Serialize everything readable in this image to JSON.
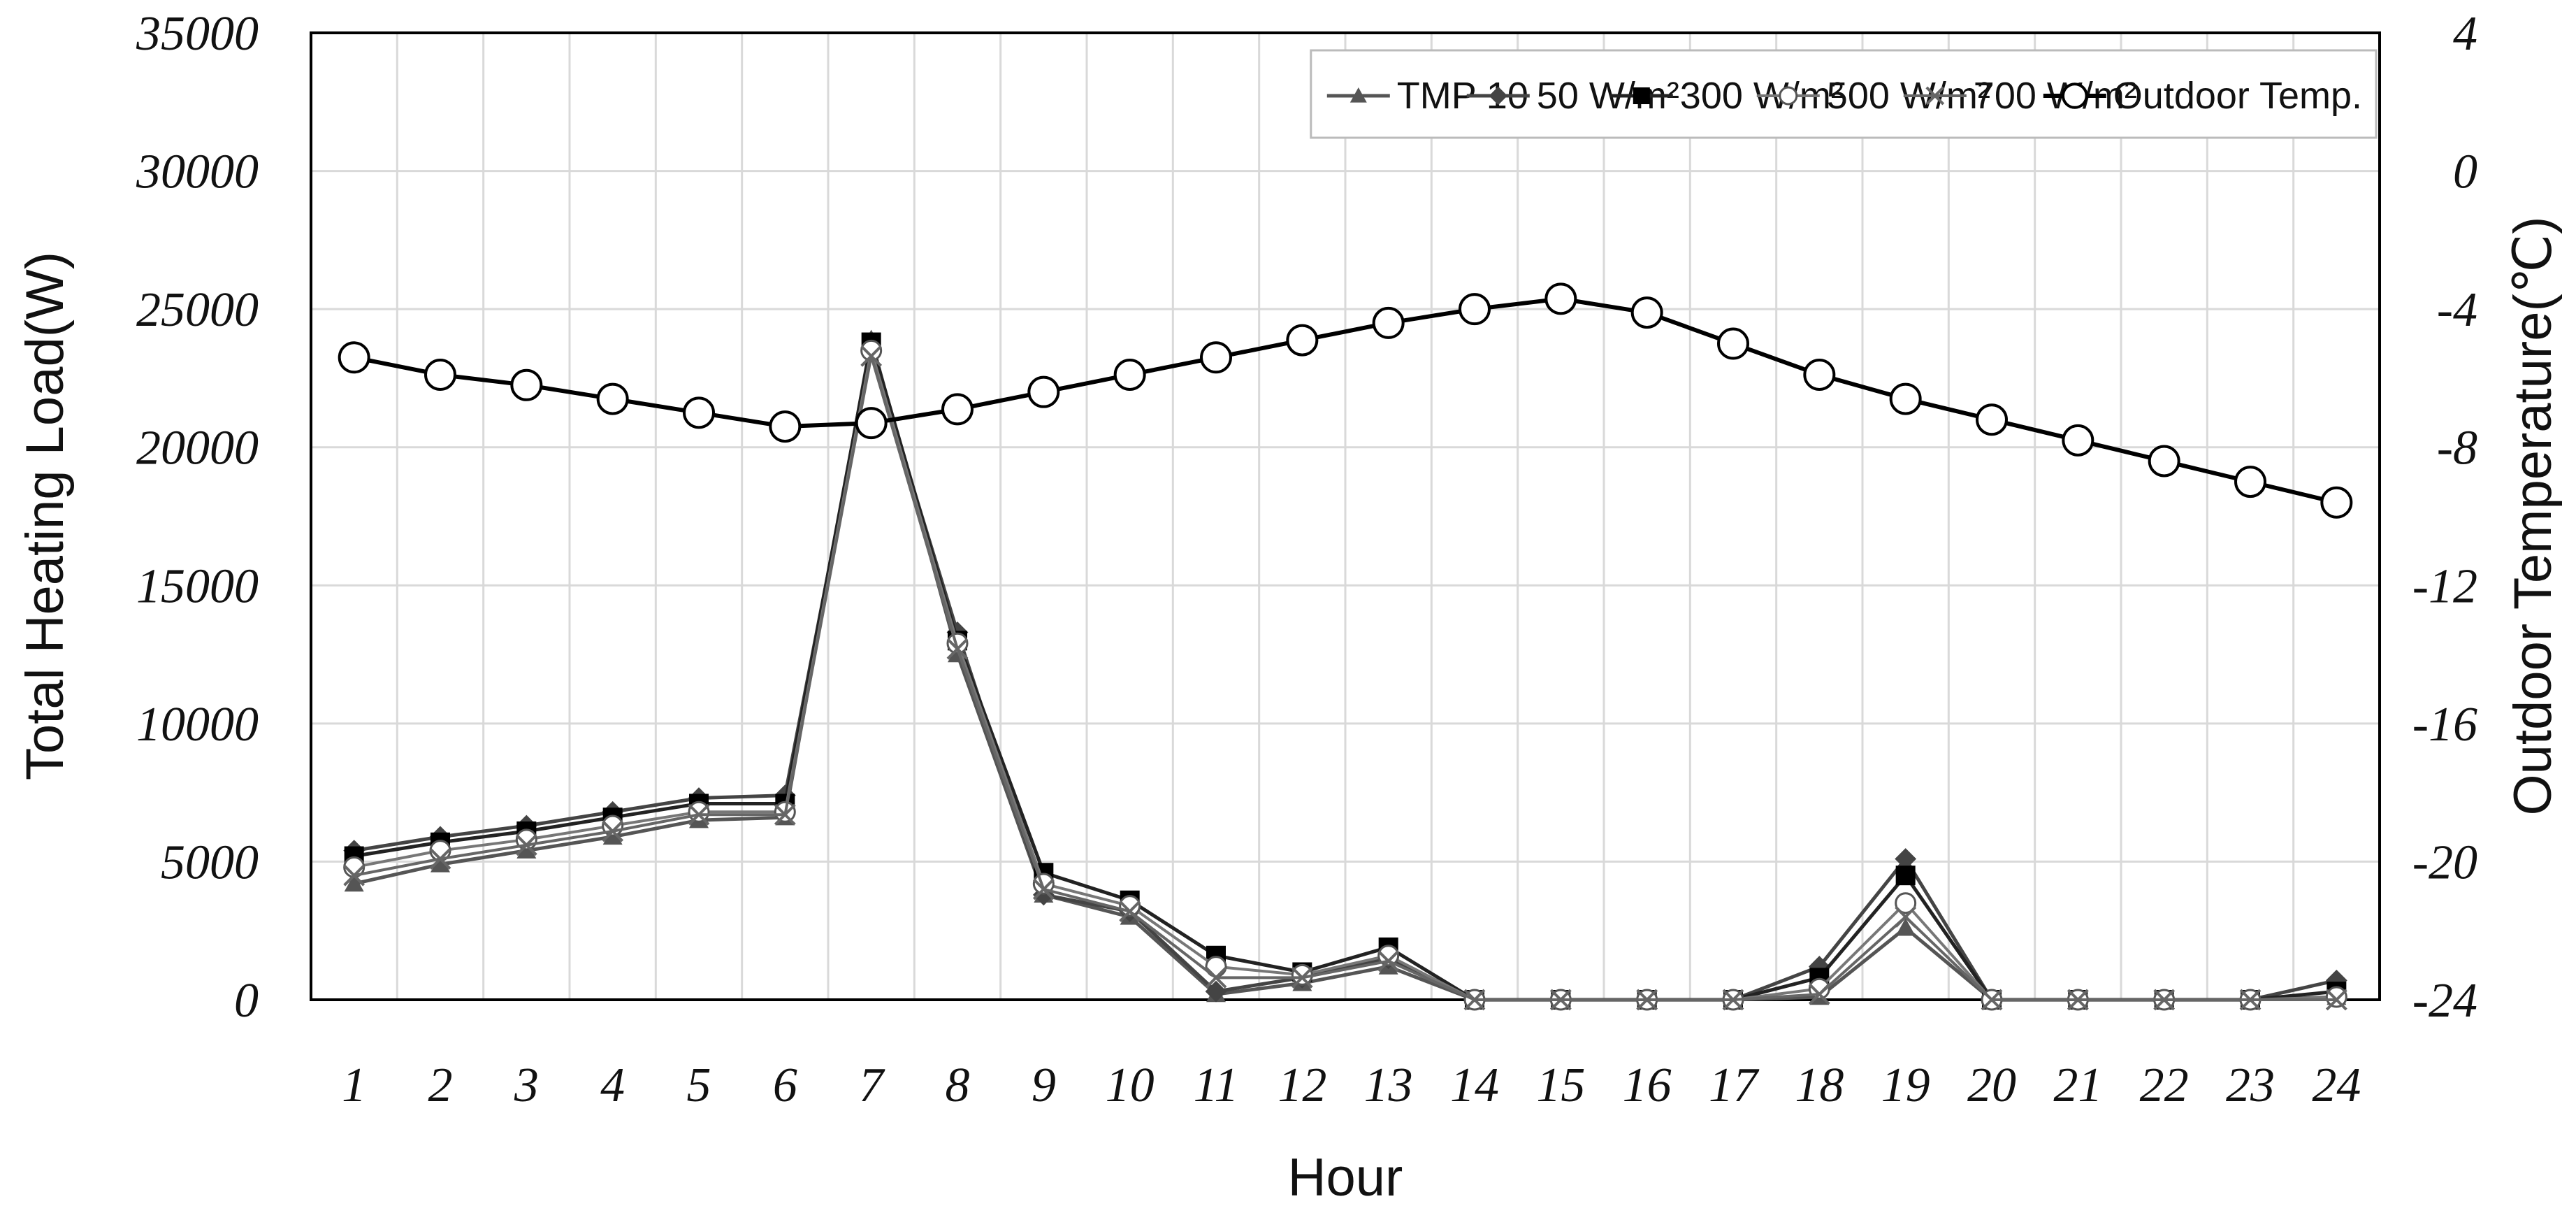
{
  "chart_data": {
    "type": "line",
    "xlabel": "Hour",
    "ylabel": "Total Heating Load(W)",
    "y2label": "Outdoor Temperature(℃)",
    "categories": [
      "1",
      "2",
      "3",
      "4",
      "5",
      "6",
      "7",
      "8",
      "9",
      "10",
      "11",
      "12",
      "13",
      "14",
      "15",
      "16",
      "17",
      "18",
      "19",
      "20",
      "21",
      "22",
      "23",
      "24"
    ],
    "ylim": [
      0,
      35000
    ],
    "yticks": [
      "0",
      "5000",
      "10000",
      "15000",
      "20000",
      "25000",
      "30000",
      "35000"
    ],
    "y2lim": [
      -24,
      4
    ],
    "y2ticks": [
      "-24",
      "-20",
      "-16",
      "-12",
      "-8",
      "-4",
      "0",
      "4"
    ],
    "grid": true,
    "legend_position": "top",
    "series": [
      {
        "name": "TMP 10",
        "axis": "left",
        "marker": "triangle",
        "values": [
          4200,
          4900,
          5400,
          5900,
          6500,
          6600,
          23900,
          12500,
          3800,
          3000,
          200,
          600,
          1200,
          0,
          0,
          0,
          0,
          100,
          2600,
          0,
          0,
          0,
          0,
          100
        ]
      },
      {
        "name": "50 W/m²",
        "axis": "left",
        "marker": "diamond",
        "values": [
          5400,
          5900,
          6300,
          6800,
          7300,
          7400,
          23500,
          13300,
          3800,
          3200,
          300,
          800,
          1500,
          0,
          0,
          0,
          0,
          1200,
          5100,
          0,
          0,
          0,
          0,
          700
        ]
      },
      {
        "name": "300 W/m²",
        "axis": "left",
        "marker": "square",
        "values": [
          5200,
          5700,
          6100,
          6600,
          7100,
          7100,
          23800,
          13000,
          4600,
          3600,
          1600,
          1000,
          1900,
          0,
          0,
          0,
          0,
          800,
          4500,
          0,
          0,
          0,
          0,
          300
        ]
      },
      {
        "name": "500 W/m²",
        "axis": "left",
        "marker": "circle-open",
        "values": [
          4800,
          5400,
          5800,
          6300,
          6800,
          6800,
          23500,
          12900,
          4200,
          3400,
          1200,
          900,
          1600,
          0,
          0,
          0,
          0,
          400,
          3500,
          0,
          0,
          0,
          0,
          100
        ]
      },
      {
        "name": "700 W/m²",
        "axis": "left",
        "marker": "x",
        "values": [
          4500,
          5100,
          5600,
          6100,
          6700,
          6700,
          23300,
          12700,
          4000,
          3200,
          800,
          800,
          1400,
          0,
          0,
          0,
          0,
          200,
          3000,
          0,
          0,
          0,
          0,
          0
        ]
      },
      {
        "name": "Outdoor Temp.",
        "axis": "right",
        "marker": "circle-open-large",
        "values": [
          -5.4,
          -5.9,
          -6.2,
          -6.6,
          -7.0,
          -7.4,
          -7.3,
          -6.9,
          -6.4,
          -5.9,
          -5.4,
          -4.9,
          -4.4,
          -4.0,
          -3.7,
          -4.1,
          -5.0,
          -5.9,
          -6.6,
          -7.2,
          -7.8,
          -8.4,
          -9.0,
          -9.6
        ]
      }
    ]
  }
}
